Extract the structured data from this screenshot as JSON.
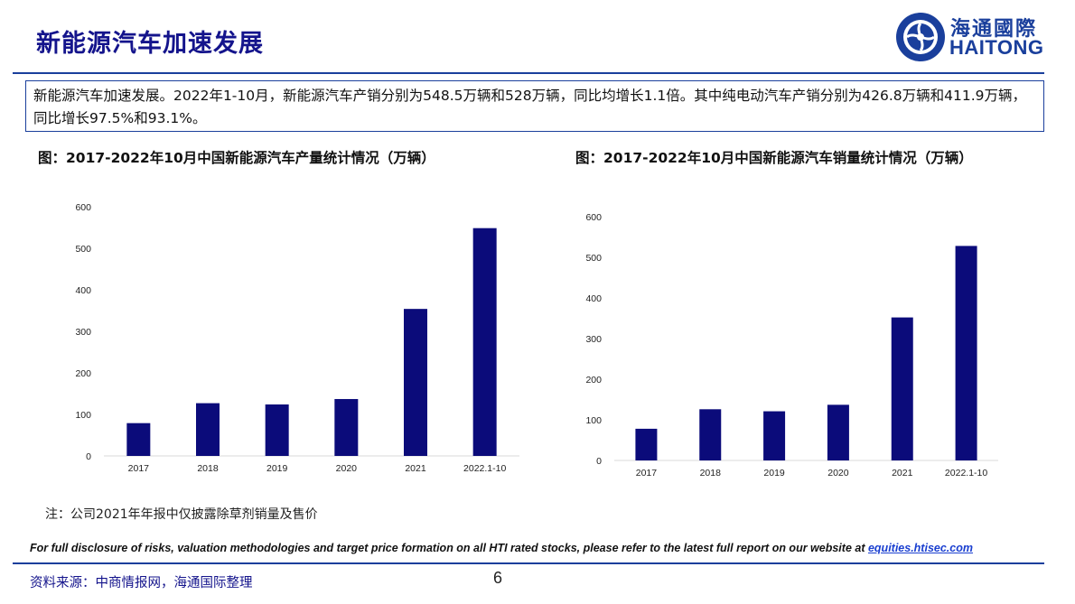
{
  "header": {
    "title": "新能源汽车加速发展"
  },
  "logo": {
    "cn": "海通國際",
    "en": "HAITONG",
    "icon": "haitong-logo-icon"
  },
  "summary": {
    "text": "新能源汽车加速发展。2022年1-10月，新能源汽车产销分别为548.5万辆和528万辆，同比均增长1.1倍。其中纯电动汽车产销分别为426.8万辆和411.9万辆，同比增长97.5%和93.1%。"
  },
  "chart_data": [
    {
      "type": "bar",
      "title": "图：2017-2022年10月中国新能源汽车产量统计情况（万辆）",
      "categories": [
        "2017",
        "2018",
        "2019",
        "2020",
        "2021",
        "2022.1-10"
      ],
      "values": [
        79,
        127,
        124,
        137,
        354,
        548.5
      ],
      "ylim": [
        0,
        600
      ],
      "yticks": [
        "0",
        "100",
        "200",
        "300",
        "400",
        "500",
        "600"
      ],
      "xlabel": "",
      "ylabel": "",
      "color": "#0b0b7a",
      "grid": false
    },
    {
      "type": "bar",
      "title": "图：2017-2022年10月中国新能源汽车销量统计情况（万辆）",
      "categories": [
        "2017",
        "2018",
        "2019",
        "2020",
        "2021",
        "2022.1-10"
      ],
      "values": [
        78,
        126,
        121,
        137,
        352,
        528
      ],
      "ylim": [
        0,
        600
      ],
      "yticks": [
        "0",
        "100",
        "200",
        "300",
        "400",
        "500",
        "600"
      ],
      "xlabel": "",
      "ylabel": "",
      "color": "#0b0b7a",
      "grid": false
    }
  ],
  "note": "注：公司2021年年报中仅披露除草剂销量及售价",
  "disclosure": {
    "text": "For full disclosure of risks, valuation methodologies and target price formation on all HTI rated stocks, please refer to the latest full report on our website at ",
    "link": "equities.htisec.com"
  },
  "source": "资料来源：中商情报网，海通国际整理",
  "page_number": "6"
}
